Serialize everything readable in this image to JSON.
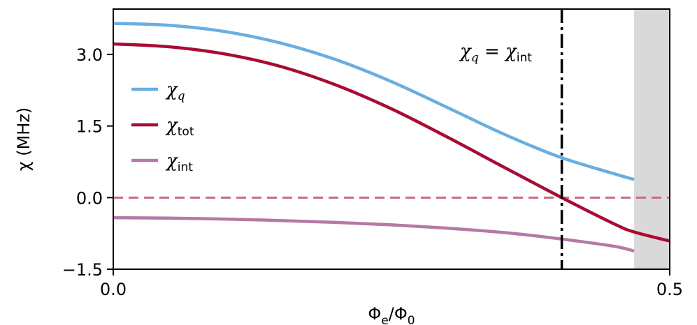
{
  "chart_data": {
    "type": "line",
    "xlabel": "Φe/Φ0",
    "xlabel_parts": {
      "base": "Φ",
      "base_sub": "e",
      "sep": "/",
      "den": "Φ",
      "den_sub": "0"
    },
    "ylabel": "χ (MHz)",
    "xlim": [
      0.0,
      0.5
    ],
    "ylim": [
      -1.5,
      3.95
    ],
    "xticks": [
      0.0,
      0.5
    ],
    "xtick_labels": [
      "0.0",
      "0.5"
    ],
    "yticks": [
      -1.5,
      0.0,
      1.5,
      3.0
    ],
    "ytick_labels": [
      "−1.5",
      "0.0",
      "1.5",
      "3.0"
    ],
    "grid": false,
    "legend_position": "upper-left",
    "series": [
      {
        "name": "χq",
        "symbol": "χ",
        "sub": "q",
        "sub_italic": true,
        "color": "#6aaee0",
        "x": [
          0.0,
          0.05,
          0.1,
          0.15,
          0.2,
          0.25,
          0.3,
          0.35,
          0.4,
          0.45,
          0.468
        ],
        "y": [
          3.65,
          3.61,
          3.48,
          3.24,
          2.89,
          2.43,
          1.89,
          1.34,
          0.86,
          0.5,
          0.38
        ]
      },
      {
        "name": "χtot",
        "symbol": "χ",
        "sub": "tot",
        "sub_italic": false,
        "color": "#a80c34",
        "x": [
          0.0,
          0.05,
          0.1,
          0.15,
          0.2,
          0.25,
          0.3,
          0.35,
          0.403,
          0.45,
          0.468,
          0.5
        ],
        "y": [
          3.22,
          3.16,
          3.01,
          2.75,
          2.36,
          1.86,
          1.27,
          0.65,
          0.0,
          -0.55,
          -0.72,
          -0.91
        ]
      },
      {
        "name": "χint",
        "symbol": "χ",
        "sub": "int",
        "sub_italic": false,
        "color": "#b47aa5",
        "x": [
          0.0,
          0.05,
          0.1,
          0.15,
          0.2,
          0.25,
          0.3,
          0.35,
          0.4,
          0.45,
          0.468
        ],
        "y": [
          -0.42,
          -0.43,
          -0.45,
          -0.48,
          -0.52,
          -0.57,
          -0.64,
          -0.73,
          -0.86,
          -1.02,
          -1.12
        ]
      }
    ],
    "reference_line": {
      "y": 0.0,
      "style": "dashed",
      "color": "#d06882"
    },
    "vertical_marker": {
      "x": 0.403,
      "style": "dashdot",
      "color": "#000000"
    },
    "annotation": {
      "text": "χq = χint",
      "symbol": "χ",
      "sub1": "q",
      "eq": "=",
      "sub2": "int"
    },
    "shaded_region": {
      "x": [
        0.468,
        0.5
      ],
      "color": "#d9d9d9"
    }
  }
}
